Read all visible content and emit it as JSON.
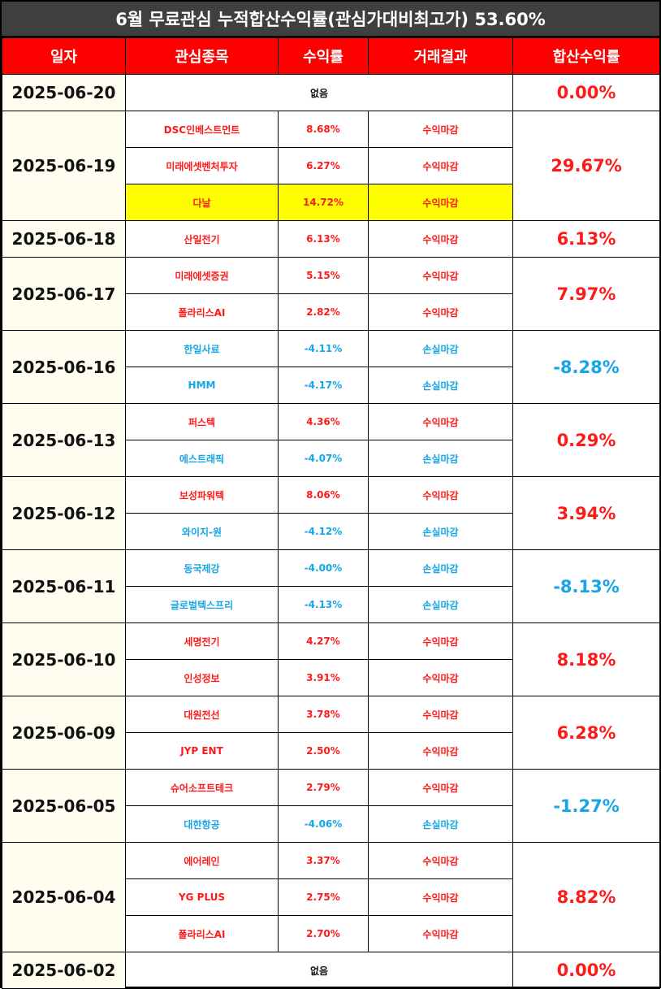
{
  "title": "6월 무료관심 누적합산수익률(관심가대비최고가) 53.60%",
  "headers": {
    "date": "일자",
    "stock": "관심종목",
    "return": "수익률",
    "result": "거래결과",
    "total": "합산수익률"
  },
  "colors": {
    "header_bg": "#ff0000",
    "title_bg": "#3f3f3f",
    "positive": "#ff1a1a",
    "negative": "#15a6e6",
    "highlight": "#ffff00",
    "date_bg": "#fffdef"
  },
  "days": [
    {
      "date": "2025-06-20",
      "none_text": "없음",
      "total": "0.00%",
      "total_sign": "pos",
      "items": []
    },
    {
      "date": "2025-06-19",
      "total": "29.67%",
      "total_sign": "pos",
      "items": [
        {
          "name": "DSC인베스트먼트",
          "ret": "8.68%",
          "result": "수익마감",
          "sign": "pos"
        },
        {
          "name": "미래에셋벤처투자",
          "ret": "6.27%",
          "result": "수익마감",
          "sign": "pos"
        },
        {
          "name": "다날",
          "ret": "14.72%",
          "result": "수익마감",
          "sign": "pos",
          "highlight": true
        }
      ]
    },
    {
      "date": "2025-06-18",
      "total": "6.13%",
      "total_sign": "pos",
      "items": [
        {
          "name": "산일전기",
          "ret": "6.13%",
          "result": "수익마감",
          "sign": "pos"
        }
      ]
    },
    {
      "date": "2025-06-17",
      "total": "7.97%",
      "total_sign": "pos",
      "items": [
        {
          "name": "미래에셋증권",
          "ret": "5.15%",
          "result": "수익마감",
          "sign": "pos"
        },
        {
          "name": "폴라리스AI",
          "ret": "2.82%",
          "result": "수익마감",
          "sign": "pos"
        }
      ]
    },
    {
      "date": "2025-06-16",
      "total": "-8.28%",
      "total_sign": "neg",
      "items": [
        {
          "name": "한일사료",
          "ret": "-4.11%",
          "result": "손실마감",
          "sign": "neg"
        },
        {
          "name": "HMM",
          "ret": "-4.17%",
          "result": "손실마감",
          "sign": "neg"
        }
      ]
    },
    {
      "date": "2025-06-13",
      "total": "0.29%",
      "total_sign": "pos",
      "items": [
        {
          "name": "퍼스텍",
          "ret": "4.36%",
          "result": "수익마감",
          "sign": "pos"
        },
        {
          "name": "에스트래픽",
          "ret": "-4.07%",
          "result": "손실마감",
          "sign": "neg"
        }
      ]
    },
    {
      "date": "2025-06-12",
      "total": "3.94%",
      "total_sign": "pos",
      "items": [
        {
          "name": "보성파워텍",
          "ret": "8.06%",
          "result": "수익마감",
          "sign": "pos"
        },
        {
          "name": "와이지-원",
          "ret": "-4.12%",
          "result": "손실마감",
          "sign": "neg"
        }
      ]
    },
    {
      "date": "2025-06-11",
      "total": "-8.13%",
      "total_sign": "neg",
      "items": [
        {
          "name": "동국제강",
          "ret": "-4.00%",
          "result": "손실마감",
          "sign": "neg"
        },
        {
          "name": "글로벌텍스프리",
          "ret": "-4.13%",
          "result": "손실마감",
          "sign": "neg"
        }
      ]
    },
    {
      "date": "2025-06-10",
      "total": "8.18%",
      "total_sign": "pos",
      "items": [
        {
          "name": "세명전기",
          "ret": "4.27%",
          "result": "수익마감",
          "sign": "pos"
        },
        {
          "name": "인성정보",
          "ret": "3.91%",
          "result": "수익마감",
          "sign": "pos"
        }
      ]
    },
    {
      "date": "2025-06-09",
      "total": "6.28%",
      "total_sign": "pos",
      "items": [
        {
          "name": "대원전선",
          "ret": "3.78%",
          "result": "수익마감",
          "sign": "pos"
        },
        {
          "name": "JYP ENT",
          "ret": "2.50%",
          "result": "수익마감",
          "sign": "pos"
        }
      ]
    },
    {
      "date": "2025-06-05",
      "total": "-1.27%",
      "total_sign": "neg",
      "items": [
        {
          "name": "슈어소프트테크",
          "ret": "2.79%",
          "result": "수익마감",
          "sign": "pos"
        },
        {
          "name": "대한항공",
          "ret": "-4.06%",
          "result": "손실마감",
          "sign": "neg"
        }
      ]
    },
    {
      "date": "2025-06-04",
      "total": "8.82%",
      "total_sign": "pos",
      "items": [
        {
          "name": "에어레인",
          "ret": "3.37%",
          "result": "수익마감",
          "sign": "pos"
        },
        {
          "name": "YG PLUS",
          "ret": "2.75%",
          "result": "수익마감",
          "sign": "pos"
        },
        {
          "name": "폴라리스AI",
          "ret": "2.70%",
          "result": "수익마감",
          "sign": "pos"
        }
      ]
    },
    {
      "date": "2025-06-02",
      "none_text": "없음",
      "total": "0.00%",
      "total_sign": "pos",
      "items": []
    }
  ]
}
